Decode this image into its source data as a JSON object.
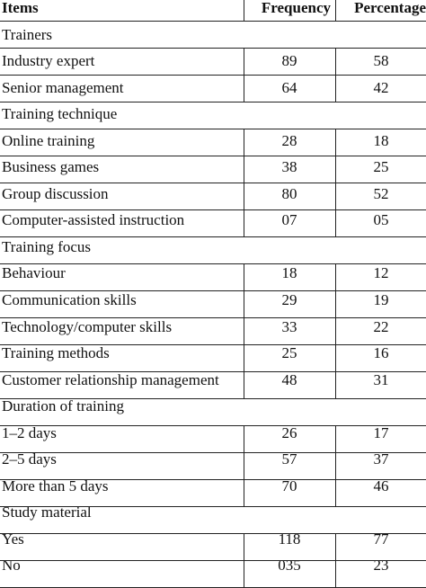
{
  "header": {
    "items": "Items",
    "frequency": "Frequency",
    "percentage": "Percentage"
  },
  "rows": [
    {
      "section": "Trainers"
    },
    {
      "item": "Industry  expert",
      "freq": "89",
      "pct": "58"
    },
    {
      "item": "Senior management",
      "freq": "64",
      "pct": "42"
    },
    {
      "section": "Training technique"
    },
    {
      "item": "Online training",
      "freq": "28",
      "pct": "18"
    },
    {
      "item": "Business games",
      "freq": "38",
      "pct": "25"
    },
    {
      "item": "Group discussion",
      "freq": "80",
      "pct": "52"
    },
    {
      "item": "Computer-assisted  instruction",
      "freq": "07",
      "pct": "05"
    },
    {
      "section": "Training focus"
    },
    {
      "item": "Behaviour",
      "freq": "18",
      "pct": "12"
    },
    {
      "item": "Communication skills",
      "freq": "29",
      "pct": "19"
    },
    {
      "item": "Technology/computer skills",
      "freq": "33",
      "pct": "22"
    },
    {
      "item": "Training methods",
      "freq": "25",
      "pct": "16"
    },
    {
      "item": "Customer relationship management",
      "freq": "48",
      "pct": "31"
    },
    {
      "section": "Duration of training"
    },
    {
      "item": "1–2  days",
      "freq": "26",
      "pct": "17"
    },
    {
      "item": "2–5  days",
      "freq": "57",
      "pct": "37"
    },
    {
      "item": "More than 5 days",
      "freq": "70",
      "pct": "46"
    },
    {
      "section": "Study material"
    },
    {
      "item": "Yes",
      "freq": "118",
      "pct": "77"
    },
    {
      "item": "No",
      "freq": "035",
      "pct": "23"
    }
  ]
}
